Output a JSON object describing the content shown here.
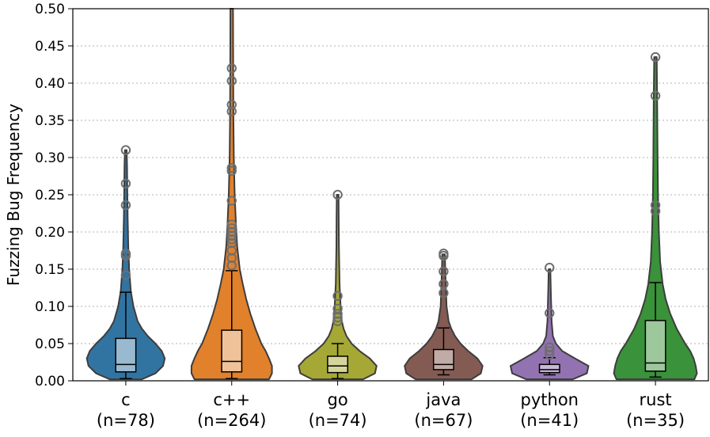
{
  "chart_data": {
    "type": "violin",
    "ylabel": "Fuzzing Bug Frequency",
    "xlabel": "",
    "ylim": [
      0,
      0.5
    ],
    "yticks": [
      "0.00",
      "0.05",
      "0.10",
      "0.15",
      "0.20",
      "0.25",
      "0.30",
      "0.35",
      "0.40",
      "0.45",
      "0.50"
    ],
    "grid": "horizontal-dotted",
    "categories": [
      {
        "name": "c",
        "n_label": "(n=78)",
        "color": "#3274a1",
        "box_color": "#98b9d0",
        "violin_max": 0.31,
        "profile": [
          [
            0.002,
            0.38
          ],
          [
            0.01,
            0.7
          ],
          [
            0.02,
            0.88
          ],
          [
            0.03,
            0.92
          ],
          [
            0.04,
            0.85
          ],
          [
            0.05,
            0.7
          ],
          [
            0.06,
            0.52
          ],
          [
            0.07,
            0.38
          ],
          [
            0.08,
            0.28
          ],
          [
            0.1,
            0.18
          ],
          [
            0.12,
            0.12
          ],
          [
            0.15,
            0.08
          ],
          [
            0.18,
            0.06
          ],
          [
            0.22,
            0.045
          ],
          [
            0.26,
            0.035
          ],
          [
            0.29,
            0.03
          ],
          [
            0.31,
            0.02
          ]
        ],
        "whisker_low": 0.003,
        "q1": 0.012,
        "median": 0.022,
        "q3": 0.057,
        "whisker_high": 0.119,
        "outliers": [
          0.31,
          0.265,
          0.236,
          0.171,
          0.168,
          0.142
        ]
      },
      {
        "name": "c++",
        "n_label": "(n=264)",
        "color": "#e1812c",
        "box_color": "#f0c29a",
        "violin_max": 0.5,
        "profile": [
          [
            0.002,
            0.88
          ],
          [
            0.01,
            0.95
          ],
          [
            0.02,
            0.95
          ],
          [
            0.03,
            0.88
          ],
          [
            0.04,
            0.8
          ],
          [
            0.05,
            0.7
          ],
          [
            0.07,
            0.56
          ],
          [
            0.09,
            0.44
          ],
          [
            0.11,
            0.34
          ],
          [
            0.13,
            0.26
          ],
          [
            0.15,
            0.19
          ],
          [
            0.18,
            0.13
          ],
          [
            0.21,
            0.1
          ],
          [
            0.25,
            0.07
          ],
          [
            0.3,
            0.05
          ],
          [
            0.35,
            0.04
          ],
          [
            0.42,
            0.035
          ],
          [
            0.5,
            0.03
          ]
        ],
        "whisker_low": 0.003,
        "q1": 0.012,
        "median": 0.026,
        "q3": 0.068,
        "whisker_high": 0.148,
        "outliers": [
          0.42,
          0.403,
          0.371,
          0.362,
          0.286,
          0.282,
          0.242,
          0.21,
          0.205,
          0.2,
          0.195,
          0.19,
          0.185,
          0.175,
          0.165,
          0.155
        ]
      },
      {
        "name": "go",
        "n_label": "(n=74)",
        "color": "#a5a835",
        "box_color": "#d5d49a",
        "violin_max": 0.25,
        "profile": [
          [
            0.002,
            0.6
          ],
          [
            0.01,
            0.88
          ],
          [
            0.02,
            0.92
          ],
          [
            0.03,
            0.76
          ],
          [
            0.04,
            0.52
          ],
          [
            0.05,
            0.33
          ],
          [
            0.06,
            0.21
          ],
          [
            0.07,
            0.14
          ],
          [
            0.08,
            0.1
          ],
          [
            0.1,
            0.07
          ],
          [
            0.13,
            0.045
          ],
          [
            0.18,
            0.03
          ],
          [
            0.22,
            0.025
          ],
          [
            0.25,
            0.02
          ]
        ],
        "whisker_low": 0.003,
        "q1": 0.011,
        "median": 0.02,
        "q3": 0.033,
        "whisker_high": 0.05,
        "outliers": [
          0.25,
          0.114,
          0.097,
          0.09,
          0.085,
          0.08
        ]
      },
      {
        "name": "java",
        "n_label": "(n=67)",
        "color": "#845b53",
        "box_color": "#c1aba6",
        "violin_max": 0.17,
        "profile": [
          [
            0.002,
            0.66
          ],
          [
            0.01,
            0.88
          ],
          [
            0.02,
            0.92
          ],
          [
            0.03,
            0.8
          ],
          [
            0.04,
            0.58
          ],
          [
            0.05,
            0.4
          ],
          [
            0.06,
            0.27
          ],
          [
            0.07,
            0.18
          ],
          [
            0.08,
            0.12
          ],
          [
            0.1,
            0.07
          ],
          [
            0.13,
            0.05
          ],
          [
            0.17,
            0.03
          ]
        ],
        "whisker_low": 0.008,
        "q1": 0.015,
        "median": 0.022,
        "q3": 0.042,
        "whisker_high": 0.071,
        "outliers": [
          0.171,
          0.168,
          0.147,
          0.13,
          0.118
        ]
      },
      {
        "name": "python",
        "n_label": "(n=41)",
        "color": "#9372b2",
        "box_color": "#c8b9d9",
        "violin_max": 0.15,
        "profile": [
          [
            0.002,
            0.55
          ],
          [
            0.01,
            0.88
          ],
          [
            0.02,
            0.92
          ],
          [
            0.03,
            0.6
          ],
          [
            0.04,
            0.3
          ],
          [
            0.05,
            0.15
          ],
          [
            0.06,
            0.08
          ],
          [
            0.08,
            0.05
          ],
          [
            0.1,
            0.04
          ],
          [
            0.12,
            0.03
          ],
          [
            0.15,
            0.02
          ]
        ],
        "whisker_low": 0.008,
        "q1": 0.011,
        "median": 0.015,
        "q3": 0.022,
        "whisker_high": 0.031,
        "outliers": [
          0.152,
          0.091,
          0.045,
          0.04,
          0.035
        ]
      },
      {
        "name": "rust",
        "n_label": "(n=35)",
        "color": "#3a923a",
        "box_color": "#9cc89c",
        "violin_max": 0.435,
        "profile": [
          [
            0.002,
            0.92
          ],
          [
            0.01,
            0.98
          ],
          [
            0.02,
            0.95
          ],
          [
            0.03,
            0.9
          ],
          [
            0.04,
            0.82
          ],
          [
            0.05,
            0.7
          ],
          [
            0.07,
            0.5
          ],
          [
            0.09,
            0.35
          ],
          [
            0.11,
            0.24
          ],
          [
            0.13,
            0.17
          ],
          [
            0.16,
            0.11
          ],
          [
            0.2,
            0.08
          ],
          [
            0.25,
            0.06
          ],
          [
            0.3,
            0.05
          ],
          [
            0.38,
            0.04
          ],
          [
            0.435,
            0.03
          ]
        ],
        "whisker_low": 0.005,
        "q1": 0.013,
        "median": 0.024,
        "q3": 0.081,
        "whisker_high": 0.132,
        "outliers": [
          0.435,
          0.383,
          0.236,
          0.228
        ]
      }
    ]
  }
}
